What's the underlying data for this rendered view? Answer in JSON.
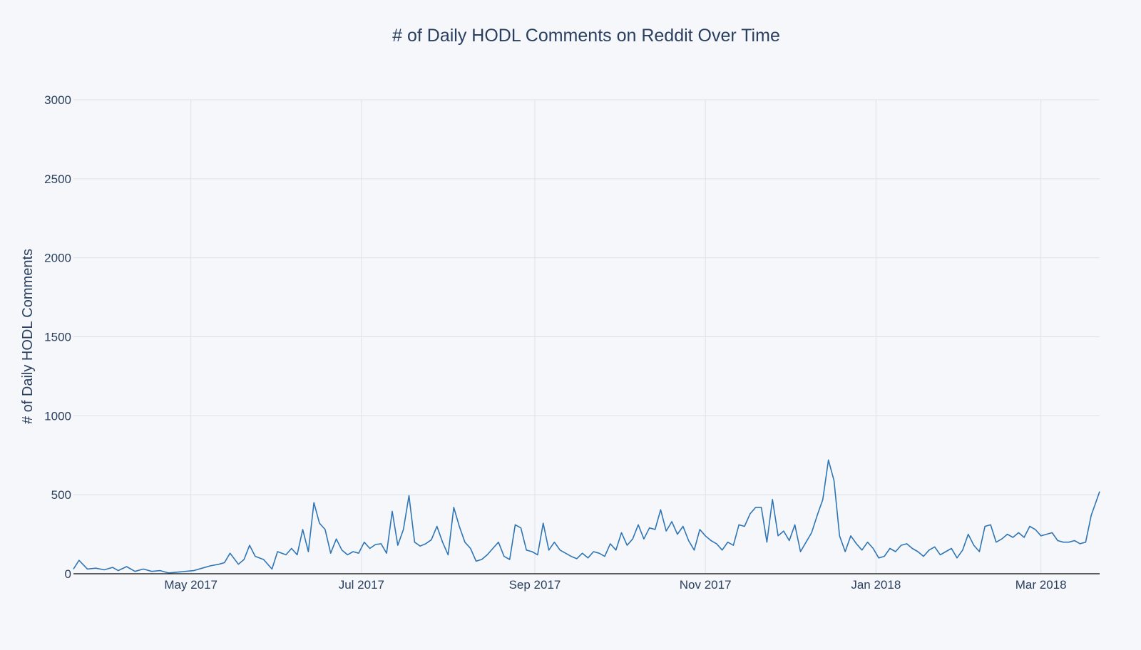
{
  "chart_data": {
    "type": "line",
    "title": "# of Daily HODL Comments on Reddit Over Time",
    "xlabel": "",
    "ylabel": "# of Daily HODL Comments",
    "xlim": [
      "2017-03-20",
      "2018-03-22"
    ],
    "ylim": [
      0,
      3000
    ],
    "grid": true,
    "legend": "none",
    "colors": {
      "series": "#2f75b5",
      "background": "#f5f7fa",
      "grid": "#dde2ea",
      "text": "#2a3f5f"
    },
    "x_ticks": [
      {
        "date": "2017-05-01",
        "label": "May 2017"
      },
      {
        "date": "2017-07-01",
        "label": "Jul 2017"
      },
      {
        "date": "2017-09-01",
        "label": "Sep 2017"
      },
      {
        "date": "2017-11-01",
        "label": "Nov 2017"
      },
      {
        "date": "2018-01-01",
        "label": "Jan 2018"
      },
      {
        "date": "2018-03-01",
        "label": "Mar 2018"
      }
    ],
    "y_ticks": [
      {
        "value": 0,
        "label": "0"
      },
      {
        "value": 500,
        "label": "500"
      },
      {
        "value": 1000,
        "label": "1000"
      },
      {
        "value": 1500,
        "label": "1500"
      },
      {
        "value": 2000,
        "label": "2000"
      },
      {
        "value": 2500,
        "label": "2500"
      },
      {
        "value": 3000,
        "label": "3000"
      }
    ],
    "series": [
      {
        "points": [
          [
            "2017-03-20",
            30
          ],
          [
            "2017-03-22",
            85
          ],
          [
            "2017-03-25",
            30
          ],
          [
            "2017-03-28",
            35
          ],
          [
            "2017-03-31",
            25
          ],
          [
            "2017-04-03",
            40
          ],
          [
            "2017-04-05",
            20
          ],
          [
            "2017-04-08",
            45
          ],
          [
            "2017-04-11",
            15
          ],
          [
            "2017-04-14",
            30
          ],
          [
            "2017-04-17",
            15
          ],
          [
            "2017-04-20",
            20
          ],
          [
            "2017-04-23",
            5
          ],
          [
            "2017-04-26",
            10
          ],
          [
            "2017-04-29",
            15
          ],
          [
            "2017-05-02",
            20
          ],
          [
            "2017-05-05",
            35
          ],
          [
            "2017-05-08",
            50
          ],
          [
            "2017-05-11",
            60
          ],
          [
            "2017-05-13",
            70
          ],
          [
            "2017-05-15",
            130
          ],
          [
            "2017-05-18",
            60
          ],
          [
            "2017-05-20",
            90
          ],
          [
            "2017-05-22",
            180
          ],
          [
            "2017-05-24",
            110
          ],
          [
            "2017-05-27",
            90
          ],
          [
            "2017-05-30",
            30
          ],
          [
            "2017-06-01",
            140
          ],
          [
            "2017-06-04",
            120
          ],
          [
            "2017-06-06",
            160
          ],
          [
            "2017-06-08",
            120
          ],
          [
            "2017-06-10",
            280
          ],
          [
            "2017-06-12",
            140
          ],
          [
            "2017-06-14",
            450
          ],
          [
            "2017-06-16",
            320
          ],
          [
            "2017-06-18",
            280
          ],
          [
            "2017-06-20",
            130
          ],
          [
            "2017-06-22",
            220
          ],
          [
            "2017-06-24",
            150
          ],
          [
            "2017-06-26",
            120
          ],
          [
            "2017-06-28",
            140
          ],
          [
            "2017-06-30",
            130
          ],
          [
            "2017-07-02",
            200
          ],
          [
            "2017-07-04",
            160
          ],
          [
            "2017-07-06",
            185
          ],
          [
            "2017-07-08",
            190
          ],
          [
            "2017-07-10",
            130
          ],
          [
            "2017-07-12",
            395
          ],
          [
            "2017-07-14",
            180
          ],
          [
            "2017-07-16",
            280
          ],
          [
            "2017-07-18",
            495
          ],
          [
            "2017-07-20",
            200
          ],
          [
            "2017-07-22",
            175
          ],
          [
            "2017-07-24",
            190
          ],
          [
            "2017-07-26",
            215
          ],
          [
            "2017-07-28",
            300
          ],
          [
            "2017-07-30",
            200
          ],
          [
            "2017-08-01",
            120
          ],
          [
            "2017-08-03",
            420
          ],
          [
            "2017-08-05",
            300
          ],
          [
            "2017-08-07",
            200
          ],
          [
            "2017-08-09",
            160
          ],
          [
            "2017-08-11",
            80
          ],
          [
            "2017-08-13",
            90
          ],
          [
            "2017-08-15",
            120
          ],
          [
            "2017-08-17",
            160
          ],
          [
            "2017-08-19",
            200
          ],
          [
            "2017-08-21",
            110
          ],
          [
            "2017-08-23",
            90
          ],
          [
            "2017-08-25",
            310
          ],
          [
            "2017-08-27",
            290
          ],
          [
            "2017-08-29",
            150
          ],
          [
            "2017-08-31",
            140
          ],
          [
            "2017-09-02",
            120
          ],
          [
            "2017-09-04",
            320
          ],
          [
            "2017-09-06",
            150
          ],
          [
            "2017-09-08",
            200
          ],
          [
            "2017-09-10",
            150
          ],
          [
            "2017-09-12",
            130
          ],
          [
            "2017-09-14",
            110
          ],
          [
            "2017-09-16",
            95
          ],
          [
            "2017-09-18",
            130
          ],
          [
            "2017-09-20",
            100
          ],
          [
            "2017-09-22",
            140
          ],
          [
            "2017-09-24",
            130
          ],
          [
            "2017-09-26",
            110
          ],
          [
            "2017-09-28",
            190
          ],
          [
            "2017-09-30",
            150
          ],
          [
            "2017-10-02",
            260
          ],
          [
            "2017-10-04",
            180
          ],
          [
            "2017-10-06",
            220
          ],
          [
            "2017-10-08",
            310
          ],
          [
            "2017-10-10",
            220
          ],
          [
            "2017-10-12",
            290
          ],
          [
            "2017-10-14",
            280
          ],
          [
            "2017-10-16",
            405
          ],
          [
            "2017-10-18",
            270
          ],
          [
            "2017-10-20",
            330
          ],
          [
            "2017-10-22",
            250
          ],
          [
            "2017-10-24",
            300
          ],
          [
            "2017-10-26",
            210
          ],
          [
            "2017-10-28",
            150
          ],
          [
            "2017-10-30",
            280
          ],
          [
            "2017-11-01",
            240
          ],
          [
            "2017-11-03",
            210
          ],
          [
            "2017-11-05",
            190
          ],
          [
            "2017-11-07",
            150
          ],
          [
            "2017-11-09",
            200
          ],
          [
            "2017-11-11",
            180
          ],
          [
            "2017-11-13",
            310
          ],
          [
            "2017-11-15",
            300
          ],
          [
            "2017-11-17",
            380
          ],
          [
            "2017-11-19",
            420
          ],
          [
            "2017-11-21",
            420
          ],
          [
            "2017-11-23",
            200
          ],
          [
            "2017-11-25",
            470
          ],
          [
            "2017-11-27",
            240
          ],
          [
            "2017-11-29",
            270
          ],
          [
            "2017-12-01",
            210
          ],
          [
            "2017-12-03",
            310
          ],
          [
            "2017-12-05",
            140
          ],
          [
            "2017-12-07",
            200
          ],
          [
            "2017-12-09",
            260
          ],
          [
            "2017-12-11",
            370
          ],
          [
            "2017-12-13",
            470
          ],
          [
            "2017-12-15",
            720
          ],
          [
            "2017-12-17",
            590
          ],
          [
            "2017-12-19",
            240
          ],
          [
            "2017-12-21",
            140
          ],
          [
            "2017-12-23",
            240
          ],
          [
            "2017-12-25",
            190
          ],
          [
            "2017-12-27",
            150
          ],
          [
            "2017-12-29",
            200
          ],
          [
            "2017-12-31",
            160
          ],
          [
            "2018-01-02",
            100
          ],
          [
            "2018-01-04",
            110
          ],
          [
            "2018-01-06",
            160
          ],
          [
            "2018-01-08",
            140
          ],
          [
            "2018-01-10",
            180
          ],
          [
            "2018-01-12",
            190
          ],
          [
            "2018-01-14",
            160
          ],
          [
            "2018-01-16",
            140
          ],
          [
            "2018-01-18",
            110
          ],
          [
            "2018-01-20",
            150
          ],
          [
            "2018-01-22",
            170
          ],
          [
            "2018-01-24",
            120
          ],
          [
            "2018-01-26",
            140
          ],
          [
            "2018-01-28",
            160
          ],
          [
            "2018-01-30",
            100
          ],
          [
            "2018-02-01",
            150
          ],
          [
            "2018-02-03",
            250
          ],
          [
            "2018-02-05",
            180
          ],
          [
            "2018-02-07",
            140
          ],
          [
            "2018-02-09",
            300
          ],
          [
            "2018-02-11",
            310
          ],
          [
            "2018-02-13",
            200
          ],
          [
            "2018-02-15",
            220
          ],
          [
            "2018-02-17",
            250
          ],
          [
            "2018-02-19",
            230
          ],
          [
            "2018-02-21",
            260
          ],
          [
            "2018-02-23",
            230
          ],
          [
            "2018-02-25",
            300
          ],
          [
            "2018-02-27",
            280
          ],
          [
            "2018-03-01",
            240
          ],
          [
            "2018-03-03",
            250
          ],
          [
            "2018-03-05",
            260
          ],
          [
            "2018-03-07",
            210
          ],
          [
            "2018-03-09",
            200
          ],
          [
            "2018-03-11",
            200
          ],
          [
            "2018-03-13",
            210
          ],
          [
            "2018-03-15",
            190
          ],
          [
            "2018-03-17",
            200
          ],
          [
            "2018-03-19",
            370
          ],
          [
            "2018-03-20",
            420
          ],
          [
            "2018-03-22",
            520
          ]
        ]
      }
    ]
  }
}
